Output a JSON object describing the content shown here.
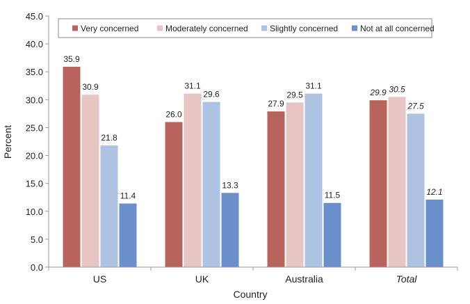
{
  "chart_data": {
    "type": "bar",
    "xlabel": "Country",
    "ylabel": "Percent",
    "ylim": [
      0,
      45
    ],
    "ytick_step": 5,
    "ytick_labels": [
      "0.0",
      "5.0",
      "10.0",
      "15.0",
      "20.0",
      "25.0",
      "30.0",
      "35.0",
      "40.0",
      "45.0"
    ],
    "categories": [
      "US",
      "UK",
      "Australia",
      "Total"
    ],
    "italic_categories": [
      "Total"
    ],
    "grid": false,
    "legend_position": "top",
    "series": [
      {
        "name": "Very concerned",
        "color": "#B8645C",
        "values": [
          35.9,
          26.0,
          27.9,
          29.9
        ],
        "labels": [
          "35.9",
          "26.0",
          "27.9",
          "29.9"
        ]
      },
      {
        "name": "Moderately concerned",
        "color": "#E6C5C3",
        "values": [
          30.9,
          31.1,
          29.5,
          30.5
        ],
        "labels": [
          "30.9",
          "31.1",
          "29.5",
          "30.5"
        ]
      },
      {
        "name": "Slightly concerned",
        "color": "#AEC2E2",
        "values": [
          21.8,
          29.6,
          31.1,
          27.5
        ],
        "labels": [
          "21.8",
          "29.6",
          "31.1",
          "27.5"
        ]
      },
      {
        "name": "Not at all concerned",
        "color": "#6A8FCB",
        "values": [
          11.4,
          13.3,
          11.5,
          12.1
        ],
        "labels": [
          "11.4",
          "13.3",
          "11.5",
          "12.1"
        ]
      }
    ]
  }
}
